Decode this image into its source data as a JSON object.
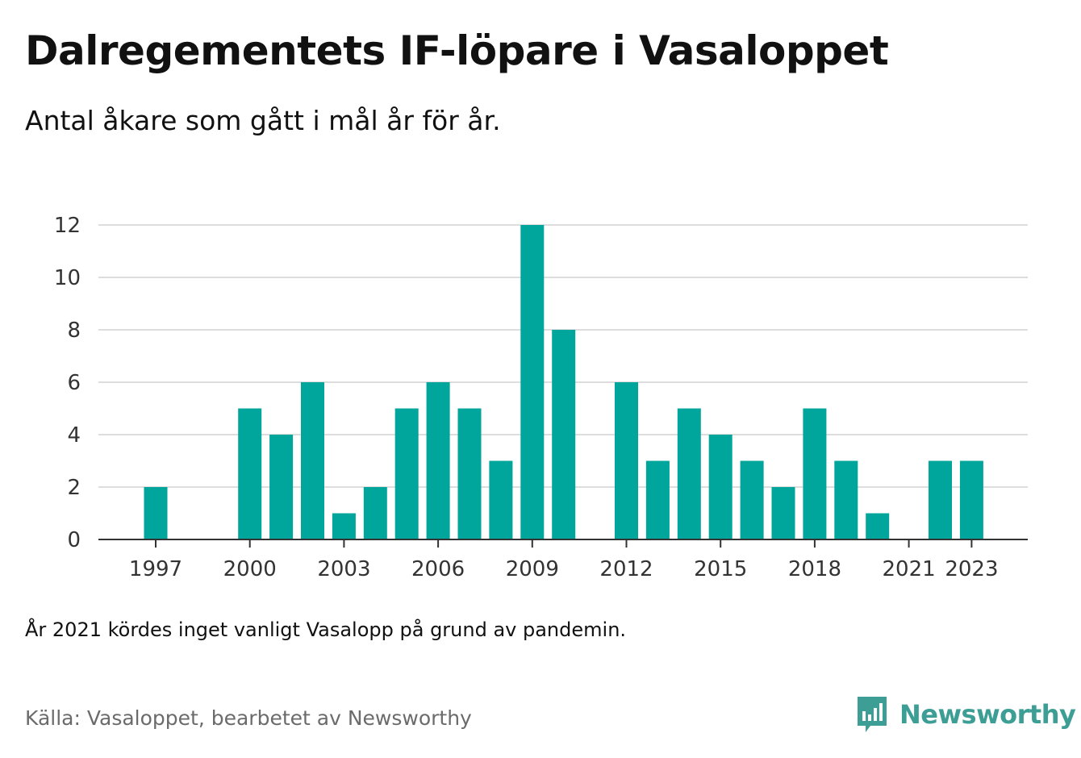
{
  "title": "Dalregementets IF-löpare i Vasaloppet",
  "subtitle": "Antal åkare som gått i mål år för år.",
  "note": "År 2021 kördes inget vanligt Vasalopp på grund av pandemin.",
  "source": "Källa: Vasaloppet, bearbetet av Newsworthy",
  "brand": {
    "name": "Newsworthy",
    "icon": "newsworthy-logo-icon"
  },
  "colors": {
    "bar": "#00a59b",
    "grid": "#dddddd",
    "axis": "#333333",
    "brand": "#3d9e95"
  },
  "chart_data": {
    "type": "bar",
    "categories": [
      "1997",
      "1998",
      "1999",
      "2000",
      "2001",
      "2002",
      "2003",
      "2004",
      "2005",
      "2006",
      "2007",
      "2008",
      "2009",
      "2010",
      "2011",
      "2012",
      "2013",
      "2014",
      "2015",
      "2016",
      "2017",
      "2018",
      "2019",
      "2020",
      "2021",
      "2022",
      "2023"
    ],
    "values": [
      2,
      0,
      0,
      5,
      4,
      6,
      1,
      2,
      5,
      6,
      5,
      3,
      12,
      8,
      0,
      6,
      3,
      5,
      4,
      3,
      2,
      5,
      3,
      1,
      0,
      3,
      3
    ],
    "x_tick_labels": [
      "1997",
      "2000",
      "2003",
      "2006",
      "2009",
      "2012",
      "2015",
      "2018",
      "2021",
      "2023"
    ],
    "y_ticks": [
      0,
      2,
      4,
      6,
      8,
      10,
      12
    ],
    "ylim": [
      0,
      12
    ],
    "xlabel": "",
    "ylabel": "",
    "grid": true,
    "legend": "none"
  }
}
